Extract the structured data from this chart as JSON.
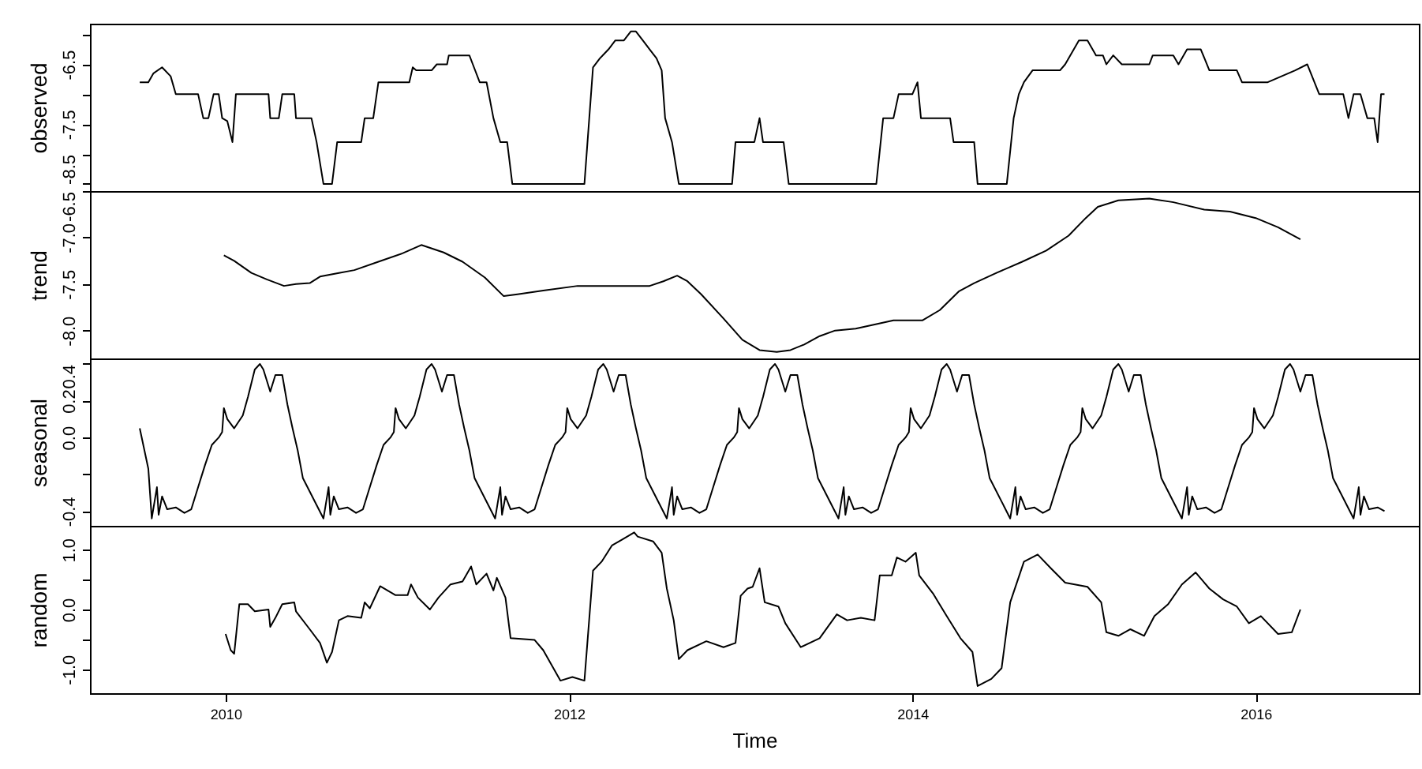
{
  "chart_data": [
    {
      "type": "line",
      "ylabel": "observed",
      "color": "#000000",
      "tick_labels": "y",
      "xlim": [
        2009.21,
        2016.95
      ],
      "ylim": [
        -8.62,
        -5.82
      ],
      "yticks": [
        {
          "value": -8.5,
          "label": "-8.5"
        },
        {
          "value": -8,
          "label": null
        },
        {
          "value": -7.5,
          "label": "-7.5"
        },
        {
          "value": -7,
          "label": null
        },
        {
          "value": -6.5,
          "label": "-6.5"
        },
        {
          "value": -6,
          "label": null
        }
      ],
      "x": [
        2009.5,
        2009.55,
        2009.58,
        2009.63,
        2009.68,
        2009.71,
        2009.84,
        2009.87,
        2009.9,
        2009.93,
        2009.96,
        2009.98,
        2010.01,
        2010.04,
        2010.06,
        2010.25,
        2010.26,
        2010.31,
        2010.33,
        2010.4,
        2010.41,
        2010.5,
        2010.53,
        2010.57,
        2010.62,
        2010.65,
        2010.79,
        2010.81,
        2010.86,
        2010.89,
        2011.07,
        2011.09,
        2011.11,
        2011.2,
        2011.23,
        2011.29,
        2011.3,
        2011.42,
        2011.44,
        2011.48,
        2011.52,
        2011.56,
        2011.6,
        2011.64,
        2011.67,
        2012.09,
        2012.14,
        2012.18,
        2012.23,
        2012.27,
        2012.32,
        2012.36,
        2012.39,
        2012.43,
        2012.47,
        2012.51,
        2012.54,
        2012.56,
        2012.6,
        2012.64,
        2012.95,
        2012.97,
        2013.08,
        2013.11,
        2013.13,
        2013.25,
        2013.28,
        2013.79,
        2013.83,
        2013.89,
        2013.92,
        2014.0,
        2014.03,
        2014.05,
        2014.22,
        2014.24,
        2014.36,
        2014.38,
        2014.55,
        2014.59,
        2014.62,
        2014.65,
        2014.7,
        2014.86,
        2014.89,
        2014.97,
        2015.02,
        2015.07,
        2015.11,
        2015.13,
        2015.17,
        2015.22,
        2015.38,
        2015.4,
        2015.52,
        2015.55,
        2015.6,
        2015.68,
        2015.73,
        2015.89,
        2015.92,
        2016.07,
        2016.23,
        2016.3,
        2016.37,
        2016.51,
        2016.54,
        2016.57,
        2016.61,
        2016.65,
        2016.69,
        2016.71,
        2016.73,
        2016.75
      ],
      "values": [
        -6.8,
        -6.8,
        -6.65,
        -6.55,
        -6.7,
        -7.0,
        -7.0,
        -7.4,
        -7.4,
        -7.0,
        -7.0,
        -7.4,
        -7.45,
        -7.8,
        -7.0,
        -7.0,
        -7.4,
        -7.4,
        -7.0,
        -7.0,
        -7.4,
        -7.4,
        -7.8,
        -8.5,
        -8.5,
        -7.8,
        -7.8,
        -7.4,
        -7.4,
        -6.8,
        -6.8,
        -6.55,
        -6.6,
        -6.6,
        -6.5,
        -6.5,
        -6.35,
        -6.35,
        -6.5,
        -6.8,
        -6.8,
        -7.4,
        -7.8,
        -7.8,
        -8.5,
        -8.5,
        -6.55,
        -6.4,
        -6.25,
        -6.1,
        -6.1,
        -5.95,
        -5.95,
        -6.1,
        -6.25,
        -6.4,
        -6.6,
        -7.4,
        -7.8,
        -8.5,
        -8.5,
        -7.8,
        -7.8,
        -7.4,
        -7.8,
        -7.8,
        -8.5,
        -8.5,
        -7.4,
        -7.4,
        -7.0,
        -7.0,
        -6.8,
        -7.4,
        -7.4,
        -7.8,
        -7.8,
        -8.5,
        -8.5,
        -7.4,
        -7.0,
        -6.8,
        -6.6,
        -6.6,
        -6.5,
        -6.1,
        -6.1,
        -6.35,
        -6.35,
        -6.5,
        -6.35,
        -6.5,
        -6.5,
        -6.35,
        -6.35,
        -6.5,
        -6.25,
        -6.25,
        -6.6,
        -6.6,
        -6.8,
        -6.8,
        -6.6,
        -6.5,
        -7.0,
        -7.0,
        -7.4,
        -7.0,
        -7.0,
        -7.4,
        -7.4,
        -7.8,
        -7.0,
        -7.0
      ]
    },
    {
      "type": "line",
      "ylabel": "trend",
      "color": "#000000",
      "tick_labels": "y",
      "xlim": [
        2009.21,
        2016.95
      ],
      "ylim": [
        -8.3,
        -6.5
      ],
      "yticks": [
        {
          "value": -8,
          "label": "-8.0"
        },
        {
          "value": -7.5,
          "label": "-7.5"
        },
        {
          "value": -7,
          "label": "-7.0"
        },
        {
          "value": -6.5,
          "label": "-6.5"
        }
      ],
      "x": [
        2009.99,
        2010.05,
        2010.15,
        2010.24,
        2010.34,
        2010.41,
        2010.49,
        2010.55,
        2010.66,
        2010.75,
        2010.89,
        2011.03,
        2011.14,
        2011.27,
        2011.38,
        2011.51,
        2011.62,
        2011.7,
        2011.85,
        2012.05,
        2012.27,
        2012.47,
        2012.55,
        2012.63,
        2012.69,
        2012.77,
        2012.9,
        2013.01,
        2013.11,
        2013.21,
        2013.29,
        2013.37,
        2013.46,
        2013.55,
        2013.67,
        2013.77,
        2013.89,
        2014.06,
        2014.16,
        2014.27,
        2014.36,
        2014.49,
        2014.64,
        2014.78,
        2014.91,
        2015.01,
        2015.08,
        2015.2,
        2015.38,
        2015.52,
        2015.7,
        2015.85,
        2016.0,
        2016.13,
        2016.26
      ],
      "values": [
        -7.19,
        -7.25,
        -7.38,
        -7.45,
        -7.52,
        -7.5,
        -7.49,
        -7.42,
        -7.38,
        -7.35,
        -7.26,
        -7.17,
        -7.08,
        -7.16,
        -7.26,
        -7.43,
        -7.63,
        -7.61,
        -7.57,
        -7.52,
        -7.52,
        -7.52,
        -7.47,
        -7.41,
        -7.47,
        -7.61,
        -7.87,
        -8.1,
        -8.21,
        -8.23,
        -8.21,
        -8.15,
        -8.06,
        -8.0,
        -7.98,
        -7.94,
        -7.89,
        -7.89,
        -7.78,
        -7.58,
        -7.49,
        -7.38,
        -7.26,
        -7.14,
        -6.98,
        -6.79,
        -6.67,
        -6.6,
        -6.58,
        -6.62,
        -6.7,
        -6.72,
        -6.79,
        -6.89,
        -7.02
      ]
    },
    {
      "type": "line",
      "ylabel": "seasonal",
      "color": "#000000",
      "tick_labels": "y",
      "xlim": [
        2009.21,
        2016.95
      ],
      "ylim": [
        -0.48,
        0.43
      ],
      "yticks": [
        -0.4,
        {
          "value": -0.2,
          "label": null
        },
        {
          "value": 0,
          "label": "0.0"
        },
        0.2,
        0.4
      ],
      "x": [
        2009.5,
        2009.55,
        2009.57,
        2009.6,
        2009.61,
        2009.63,
        2009.66,
        2009.71,
        2009.76,
        2009.8,
        2009.84,
        2009.88,
        2009.92,
        2009.96,
        2009.98,
        2009.99,
        2010.01,
        2010.05,
        2010.1,
        2010.13,
        2010.17,
        2010.2,
        2010.22,
        2010.26,
        2010.29,
        2010.33,
        2010.36,
        2010.39,
        2010.42,
        2010.45,
        2010.57,
        2010.6,
        2010.61,
        2010.63,
        2010.66,
        2010.71,
        2010.76,
        2010.8,
        2010.84,
        2010.88,
        2010.92,
        2010.96,
        2010.98,
        2010.99,
        2011.01,
        2011.05,
        2011.1,
        2011.13,
        2011.17,
        2011.2,
        2011.22,
        2011.26,
        2011.29,
        2011.33,
        2011.36,
        2011.39,
        2011.42,
        2011.45,
        2011.57,
        2011.6,
        2011.61,
        2011.63,
        2011.66,
        2011.71,
        2011.76,
        2011.8,
        2011.84,
        2011.88,
        2011.92,
        2011.96,
        2011.98,
        2011.99,
        2012.01,
        2012.05,
        2012.1,
        2012.13,
        2012.17,
        2012.2,
        2012.22,
        2012.26,
        2012.29,
        2012.33,
        2012.36,
        2012.39,
        2012.42,
        2012.45,
        2012.57,
        2012.6,
        2012.61,
        2012.63,
        2012.66,
        2012.71,
        2012.76,
        2012.8,
        2012.84,
        2012.88,
        2012.92,
        2012.96,
        2012.98,
        2012.99,
        2013.01,
        2013.05,
        2013.1,
        2013.13,
        2013.17,
        2013.2,
        2013.22,
        2013.26,
        2013.29,
        2013.33,
        2013.36,
        2013.39,
        2013.42,
        2013.45,
        2013.57,
        2013.6,
        2013.61,
        2013.63,
        2013.66,
        2013.71,
        2013.76,
        2013.8,
        2013.84,
        2013.88,
        2013.92,
        2013.96,
        2013.98,
        2013.99,
        2014.01,
        2014.05,
        2014.1,
        2014.13,
        2014.17,
        2014.2,
        2014.22,
        2014.26,
        2014.29,
        2014.33,
        2014.36,
        2014.39,
        2014.42,
        2014.45,
        2014.57,
        2014.6,
        2014.61,
        2014.63,
        2014.66,
        2014.71,
        2014.76,
        2014.8,
        2014.84,
        2014.88,
        2014.92,
        2014.96,
        2014.98,
        2014.99,
        2015.01,
        2015.05,
        2015.1,
        2015.13,
        2015.17,
        2015.2,
        2015.22,
        2015.26,
        2015.29,
        2015.33,
        2015.36,
        2015.39,
        2015.42,
        2015.45,
        2015.57,
        2015.6,
        2015.61,
        2015.63,
        2015.66,
        2015.71,
        2015.76,
        2015.8,
        2015.84,
        2015.88,
        2015.92,
        2015.96,
        2015.98,
        2015.99,
        2016.01,
        2016.05,
        2016.1,
        2016.13,
        2016.17,
        2016.2,
        2016.22,
        2016.26,
        2016.29,
        2016.33,
        2016.36,
        2016.39,
        2016.42,
        2016.45,
        2016.57,
        2016.6,
        2016.61,
        2016.63,
        2016.66,
        2016.71,
        2016.75
      ],
      "values": [
        0.05,
        -0.17,
        -0.44,
        -0.27,
        -0.42,
        -0.32,
        -0.39,
        -0.38,
        -0.41,
        -0.39,
        -0.27,
        -0.15,
        -0.04,
        0.0,
        0.03,
        0.16,
        0.1,
        0.05,
        0.12,
        0.22,
        0.37,
        0.4,
        0.37,
        0.25,
        0.34,
        0.34,
        0.18,
        0.05,
        -0.07,
        -0.22,
        -0.44,
        -0.27,
        -0.42,
        -0.32,
        -0.39,
        -0.38,
        -0.41,
        -0.39,
        -0.27,
        -0.15,
        -0.04,
        0.0,
        0.03,
        0.16,
        0.1,
        0.05,
        0.12,
        0.22,
        0.37,
        0.4,
        0.37,
        0.25,
        0.34,
        0.34,
        0.18,
        0.05,
        -0.07,
        -0.22,
        -0.44,
        -0.27,
        -0.42,
        -0.32,
        -0.39,
        -0.38,
        -0.41,
        -0.39,
        -0.27,
        -0.15,
        -0.04,
        0.0,
        0.03,
        0.16,
        0.1,
        0.05,
        0.12,
        0.22,
        0.37,
        0.4,
        0.37,
        0.25,
        0.34,
        0.34,
        0.18,
        0.05,
        -0.07,
        -0.22,
        -0.44,
        -0.27,
        -0.42,
        -0.32,
        -0.39,
        -0.38,
        -0.41,
        -0.39,
        -0.27,
        -0.15,
        -0.04,
        0.0,
        0.03,
        0.16,
        0.1,
        0.05,
        0.12,
        0.22,
        0.37,
        0.4,
        0.37,
        0.25,
        0.34,
        0.34,
        0.18,
        0.05,
        -0.07,
        -0.22,
        -0.44,
        -0.27,
        -0.42,
        -0.32,
        -0.39,
        -0.38,
        -0.41,
        -0.39,
        -0.27,
        -0.15,
        -0.04,
        0.0,
        0.03,
        0.16,
        0.1,
        0.05,
        0.12,
        0.22,
        0.37,
        0.4,
        0.37,
        0.25,
        0.34,
        0.34,
        0.18,
        0.05,
        -0.07,
        -0.22,
        -0.44,
        -0.27,
        -0.42,
        -0.32,
        -0.39,
        -0.38,
        -0.41,
        -0.39,
        -0.27,
        -0.15,
        -0.04,
        0.0,
        0.03,
        0.16,
        0.1,
        0.05,
        0.12,
        0.22,
        0.37,
        0.4,
        0.37,
        0.25,
        0.34,
        0.34,
        0.18,
        0.05,
        -0.07,
        -0.22,
        -0.44,
        -0.27,
        -0.42,
        -0.32,
        -0.39,
        -0.38,
        -0.41,
        -0.39,
        -0.27,
        -0.15,
        -0.04,
        0.0,
        0.03,
        0.16,
        0.1,
        0.05,
        0.12,
        0.22,
        0.37,
        0.4,
        0.37,
        0.25,
        0.34,
        0.34,
        0.18,
        0.05,
        -0.07,
        -0.22,
        -0.44,
        -0.27,
        -0.42,
        -0.32,
        -0.39,
        -0.38,
        -0.4
      ]
    },
    {
      "type": "line",
      "ylabel": "random",
      "xlabel": "Time",
      "color": "#000000",
      "xlim": [
        2009.21,
        2016.95
      ],
      "xticks": [
        2010,
        2012,
        2014,
        2016
      ],
      "ylim": [
        -1.4,
        1.4
      ],
      "yticks": [
        {
          "value": -1,
          "label": "-1.0"
        },
        {
          "value": -0.5,
          "label": null
        },
        {
          "value": 0,
          "label": "0.0"
        },
        {
          "value": 0.5,
          "label": null
        },
        {
          "value": 1,
          "label": "1.0"
        }
      ],
      "x": [
        2010.0,
        2010.03,
        2010.05,
        2010.08,
        2010.13,
        2010.17,
        2010.25,
        2010.26,
        2010.29,
        2010.33,
        2010.4,
        2010.41,
        2010.49,
        2010.55,
        2010.59,
        2010.62,
        2010.66,
        2010.71,
        2010.79,
        2010.81,
        2010.84,
        2010.9,
        2010.99,
        2011.06,
        2011.08,
        2011.12,
        2011.19,
        2011.24,
        2011.31,
        2011.38,
        2011.43,
        2011.46,
        2011.52,
        2011.56,
        2011.58,
        2011.63,
        2011.66,
        2011.8,
        2011.85,
        2011.95,
        2012.02,
        2012.09,
        2012.14,
        2012.19,
        2012.25,
        2012.31,
        2012.38,
        2012.4,
        2012.49,
        2012.54,
        2012.57,
        2012.61,
        2012.64,
        2012.69,
        2012.8,
        2012.9,
        2012.97,
        2013.0,
        2013.04,
        2013.07,
        2013.11,
        2013.14,
        2013.22,
        2013.26,
        2013.35,
        2013.46,
        2013.56,
        2013.62,
        2013.7,
        2013.78,
        2013.81,
        2013.88,
        2013.91,
        2013.96,
        2014.02,
        2014.04,
        2014.12,
        2014.2,
        2014.28,
        2014.35,
        2014.38,
        2014.46,
        2014.52,
        2014.57,
        2014.65,
        2014.73,
        2014.81,
        2014.89,
        2015.02,
        2015.1,
        2015.13,
        2015.2,
        2015.27,
        2015.35,
        2015.41,
        2015.49,
        2015.57,
        2015.65,
        2015.73,
        2015.81,
        2015.89,
        2015.96,
        2016.03,
        2016.13,
        2016.21,
        2016.26
      ],
      "values": [
        -0.41,
        -0.68,
        -0.74,
        0.09,
        0.09,
        -0.03,
        0.0,
        -0.29,
        -0.14,
        0.09,
        0.12,
        -0.03,
        -0.33,
        -0.56,
        -0.89,
        -0.71,
        -0.18,
        -0.11,
        -0.14,
        0.12,
        0.02,
        0.39,
        0.24,
        0.24,
        0.42,
        0.2,
        0.0,
        0.2,
        0.42,
        0.47,
        0.72,
        0.42,
        0.6,
        0.32,
        0.53,
        0.2,
        -0.48,
        -0.51,
        -0.68,
        -1.19,
        -1.13,
        -1.19,
        0.65,
        0.8,
        1.07,
        1.17,
        1.29,
        1.22,
        1.14,
        0.95,
        0.35,
        -0.18,
        -0.83,
        -0.68,
        -0.53,
        -0.63,
        -0.56,
        0.23,
        0.35,
        0.38,
        0.69,
        0.12,
        0.05,
        -0.23,
        -0.63,
        -0.48,
        -0.08,
        -0.18,
        -0.14,
        -0.18,
        0.57,
        0.57,
        0.87,
        0.8,
        0.95,
        0.57,
        0.27,
        -0.11,
        -0.48,
        -0.71,
        -1.28,
        -1.16,
        -0.98,
        0.12,
        0.8,
        0.92,
        0.68,
        0.45,
        0.38,
        0.12,
        -0.38,
        -0.44,
        -0.33,
        -0.44,
        -0.11,
        0.09,
        0.42,
        0.62,
        0.35,
        0.17,
        0.05,
        -0.23,
        -0.11,
        -0.41,
        -0.38,
        0.0
      ]
    }
  ]
}
